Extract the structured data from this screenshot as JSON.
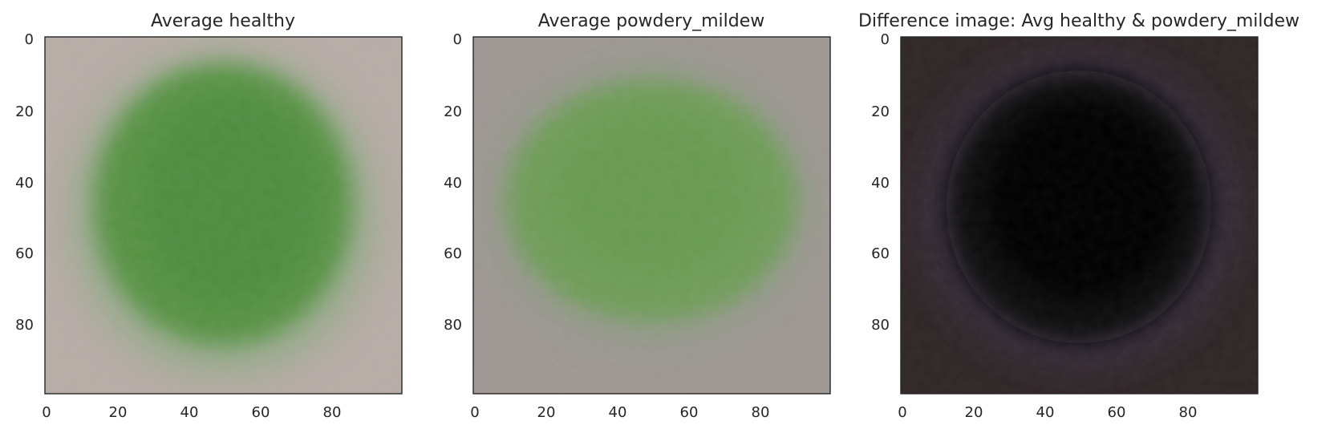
{
  "figure": {
    "panels": [
      {
        "title": "Average healthy",
        "x_ticks": [
          "0",
          "20",
          "40",
          "60",
          "80"
        ],
        "y_ticks": [
          "0",
          "20",
          "40",
          "60",
          "80"
        ],
        "image": {
          "background": "#b9aca7",
          "leaf": "#569343",
          "leaf_core": "#4b8b3c",
          "leaf_edge": "#8eaa84",
          "vein": "#7fb067"
        }
      },
      {
        "title": "Average powdery_mildew",
        "x_ticks": [
          "0",
          "20",
          "40",
          "60",
          "80"
        ],
        "y_ticks": [
          "0",
          "20",
          "40",
          "60",
          "80"
        ],
        "image": {
          "background": "#9e9793",
          "leaf": "#6e9d57",
          "leaf_core": "#659a4e",
          "leaf_edge": "#8d9c84",
          "vein": "#7ea868"
        }
      },
      {
        "title": "Difference image: Avg healthy & powdery_mildew",
        "x_ticks": [
          "0",
          "20",
          "40",
          "60",
          "80"
        ],
        "y_ticks": [
          "0",
          "20",
          "40",
          "60",
          "80"
        ],
        "image": {
          "background": "#2f2626",
          "leaf": "#0d0b10",
          "leaf_core": "#050306",
          "leaf_edge": "#3d3048",
          "vein": "#14201a"
        }
      }
    ]
  }
}
